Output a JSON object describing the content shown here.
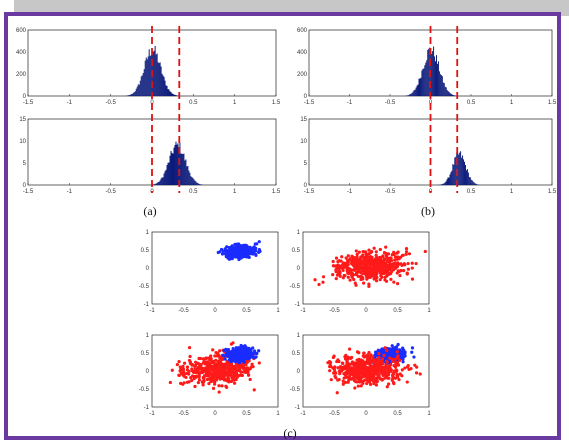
{
  "colors": {
    "frame": "#6a3aa0",
    "histogram": "#0b1a7a",
    "blue_cluster": "#1a2cff",
    "red_cluster": "#ff1a1a",
    "dashed_line": "#e01010"
  },
  "panel_labels": [
    "(a)",
    "(b)",
    "(c)"
  ],
  "chart_data": [
    {
      "type": "bar",
      "panel": "(a) top",
      "x_tick_labels": [
        "-1.5",
        "-1",
        "-0.5",
        "0",
        "0.5",
        "1",
        "1.5"
      ],
      "y_tick_labels": [
        "0",
        "200",
        "400",
        "600"
      ],
      "xlim": [
        -1.5,
        1.5
      ],
      "ylim": [
        0,
        600
      ],
      "distribution": {
        "mean": 0.0,
        "std": 0.1,
        "peak": 420
      },
      "dashed_lines_x": [
        0.0,
        0.33
      ]
    },
    {
      "type": "bar",
      "panel": "(a) bottom",
      "x_tick_labels": [
        "-1.5",
        "-1",
        "-0.5",
        "0",
        "0.5",
        "1",
        "1.5"
      ],
      "y_tick_labels": [
        "0",
        "5",
        "10",
        "15"
      ],
      "xlim": [
        -1.5,
        1.5
      ],
      "ylim": [
        0,
        15
      ],
      "distribution": {
        "mean": 0.3,
        "std": 0.1,
        "peak": 9
      },
      "dashed_lines_x": [
        0.0,
        0.33
      ]
    },
    {
      "type": "bar",
      "panel": "(b) top",
      "x_tick_labels": [
        "-1.5",
        "-1",
        "-0.5",
        "0",
        "0.5",
        "1",
        "1.5"
      ],
      "y_tick_labels": [
        "0",
        "200",
        "400",
        "600"
      ],
      "xlim": [
        -1.5,
        1.5
      ],
      "ylim": [
        0,
        600
      ],
      "distribution": {
        "mean": 0.0,
        "std": 0.1,
        "peak": 420
      },
      "dashed_lines_x": [
        0.0,
        0.33
      ]
    },
    {
      "type": "bar",
      "panel": "(b) bottom",
      "x_tick_labels": [
        "-1.5",
        "-1",
        "-0.5",
        "0",
        "0.5",
        "1",
        "1.5"
      ],
      "y_tick_labels": [
        "0",
        "5",
        "10",
        "15"
      ],
      "xlim": [
        -1.5,
        1.5
      ],
      "ylim": [
        0,
        15
      ],
      "distribution": {
        "mean": 0.35,
        "std": 0.08,
        "peak": 7
      },
      "dashed_lines_x": [
        0.0,
        0.33
      ]
    },
    {
      "type": "scatter",
      "panel": "(c) top-left",
      "x_tick_labels": [
        "-1",
        "-0.5",
        "0",
        "0.5",
        "1"
      ],
      "y_tick_labels": [
        "-1",
        "-0.5",
        "0",
        "0.5",
        "1"
      ],
      "xlim": [
        -1,
        1
      ],
      "ylim": [
        -1,
        1
      ],
      "clusters": [
        {
          "color": "blue",
          "center": [
            0.4,
            0.45
          ],
          "spread": [
            0.1,
            0.08
          ],
          "angle_deg": 20
        }
      ]
    },
    {
      "type": "scatter",
      "panel": "(c) top-right",
      "x_tick_labels": [
        "-1",
        "-0.5",
        "0",
        "0.5",
        "1"
      ],
      "y_tick_labels": [
        "-1",
        "-0.5",
        "0",
        "0.5",
        "1"
      ],
      "xlim": [
        -1,
        1
      ],
      "ylim": [
        -1,
        1
      ],
      "clusters": [
        {
          "color": "red",
          "center": [
            0.05,
            0.05
          ],
          "spread": [
            0.27,
            0.2
          ],
          "angle_deg": 10
        }
      ]
    },
    {
      "type": "scatter",
      "panel": "(c) bottom-left",
      "x_tick_labels": [
        "-1",
        "-0.5",
        "0",
        "0.5",
        "1"
      ],
      "y_tick_labels": [
        "-1",
        "-0.5",
        "0",
        "0.5",
        "1"
      ],
      "xlim": [
        -1,
        1
      ],
      "ylim": [
        -1,
        1
      ],
      "clusters": [
        {
          "color": "red",
          "center": [
            0.05,
            0.05
          ],
          "spread": [
            0.27,
            0.2
          ],
          "angle_deg": 10
        },
        {
          "color": "blue",
          "center": [
            0.4,
            0.45
          ],
          "spread": [
            0.1,
            0.08
          ],
          "angle_deg": 20
        }
      ]
    },
    {
      "type": "scatter",
      "panel": "(c) bottom-right",
      "x_tick_labels": [
        "-1",
        "-0.5",
        "0",
        "0.5",
        "1"
      ],
      "y_tick_labels": [
        "-1",
        "-0.5",
        "0",
        "0.5",
        "1"
      ],
      "xlim": [
        -1,
        1
      ],
      "ylim": [
        -1,
        1
      ],
      "clusters": [
        {
          "color": "blue",
          "center": [
            0.4,
            0.45
          ],
          "spread": [
            0.1,
            0.08
          ],
          "angle_deg": 20
        },
        {
          "color": "red",
          "center": [
            0.05,
            0.05
          ],
          "spread": [
            0.27,
            0.2
          ],
          "angle_deg": 10
        }
      ]
    }
  ]
}
